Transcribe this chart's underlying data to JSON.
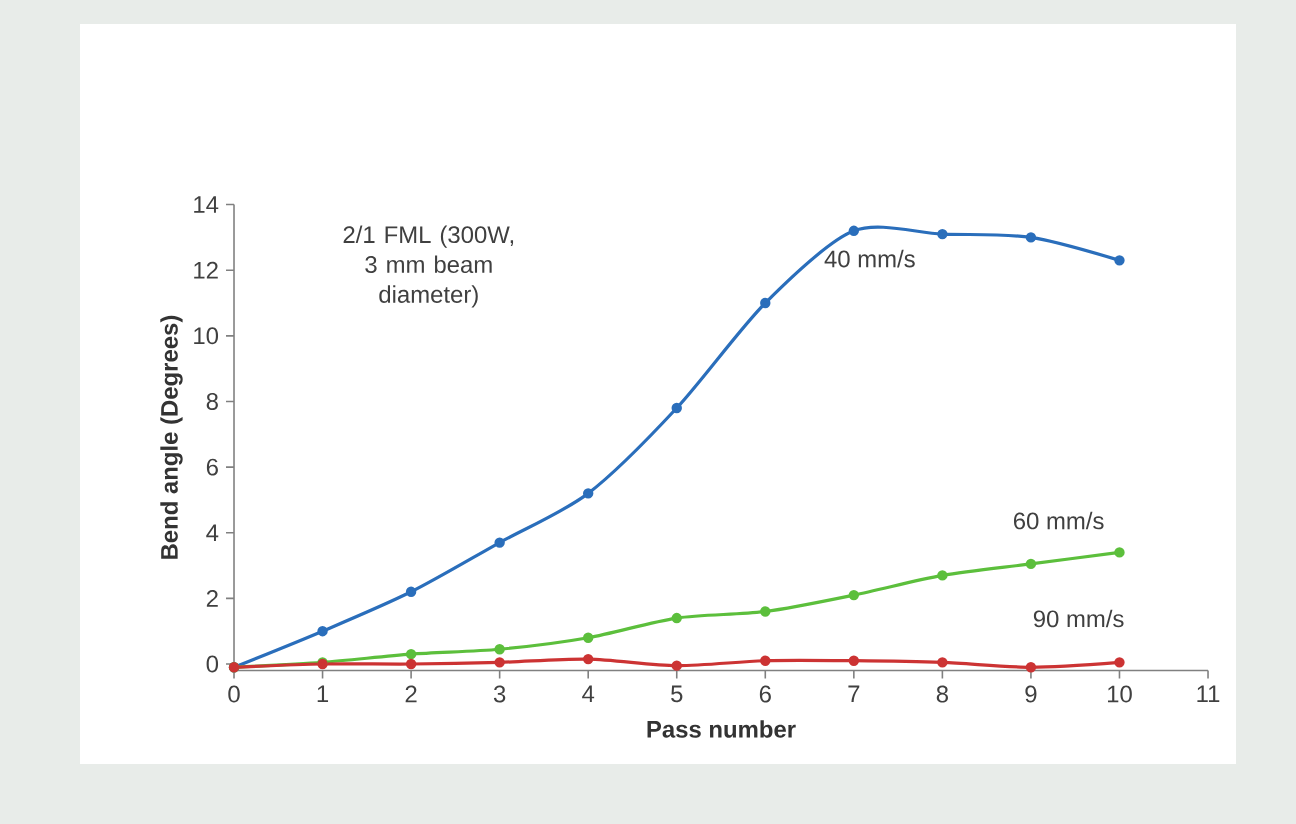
{
  "chart_data": {
    "type": "line",
    "xlabel": "Pass number",
    "ylabel": "Bend angle (Degrees)",
    "annotations": [
      "2/1 FML (300W, 3 mm beam diameter)"
    ],
    "x": [
      0,
      1,
      2,
      3,
      4,
      5,
      6,
      7,
      8,
      9,
      10
    ],
    "series": [
      {
        "name": "40 mm/s",
        "color": "#2a6ebb",
        "values": [
          -0.1,
          1.0,
          2.2,
          3.7,
          5.2,
          7.8,
          11.0,
          13.2,
          13.1,
          13.0,
          12.3
        ]
      },
      {
        "name": "60 mm/s",
        "color": "#5cbf3c",
        "values": [
          -0.1,
          0.05,
          0.3,
          0.45,
          0.8,
          1.4,
          1.6,
          2.1,
          2.7,
          3.05,
          3.4
        ]
      },
      {
        "name": "90 mm/s",
        "color": "#cc3333",
        "values": [
          -0.1,
          0.0,
          0.0,
          0.05,
          0.15,
          -0.05,
          0.1,
          0.1,
          0.05,
          -0.1,
          0.05
        ]
      }
    ],
    "xlim": [
      0,
      11
    ],
    "ylim": [
      -0.2,
      14
    ],
    "xticks": [
      0,
      1,
      2,
      3,
      4,
      5,
      6,
      7,
      8,
      9,
      10,
      11
    ],
    "yticks": [
      0,
      2,
      4,
      6,
      8,
      10,
      12,
      14
    ],
    "grid": false,
    "legend": false,
    "marker": "circle",
    "line_style": "solid"
  }
}
